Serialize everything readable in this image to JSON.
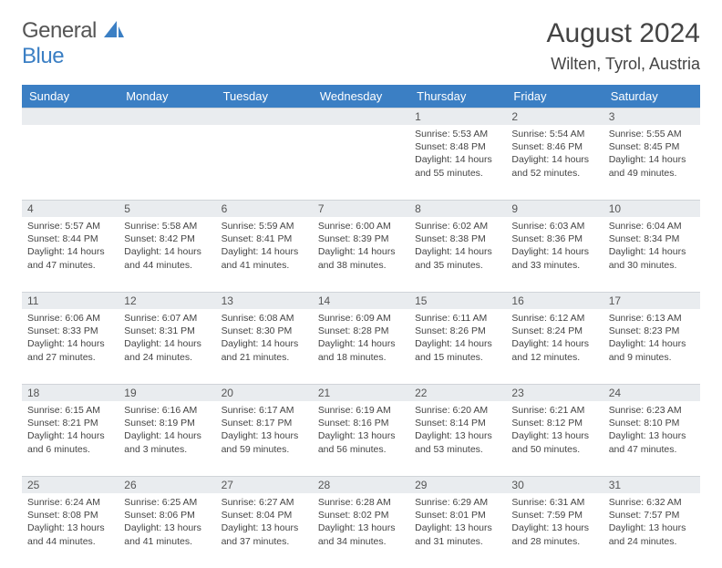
{
  "logo": {
    "text_a": "General",
    "text_b": "Blue"
  },
  "title": "August 2024",
  "location": "Wilten, Tyrol, Austria",
  "colors": {
    "header_bg": "#3b7fc4",
    "header_text": "#ffffff",
    "daynum_bg": "#e9ecef",
    "border": "#d0d4d9",
    "text": "#444444",
    "page_bg": "#ffffff"
  },
  "day_headers": [
    "Sunday",
    "Monday",
    "Tuesday",
    "Wednesday",
    "Thursday",
    "Friday",
    "Saturday"
  ],
  "weeks": [
    {
      "nums": [
        "",
        "",
        "",
        "",
        "1",
        "2",
        "3"
      ],
      "cells": [
        null,
        null,
        null,
        null,
        {
          "sunrise": "5:53 AM",
          "sunset": "8:48 PM",
          "daylight": "14 hours and 55 minutes."
        },
        {
          "sunrise": "5:54 AM",
          "sunset": "8:46 PM",
          "daylight": "14 hours and 52 minutes."
        },
        {
          "sunrise": "5:55 AM",
          "sunset": "8:45 PM",
          "daylight": "14 hours and 49 minutes."
        }
      ]
    },
    {
      "nums": [
        "4",
        "5",
        "6",
        "7",
        "8",
        "9",
        "10"
      ],
      "cells": [
        {
          "sunrise": "5:57 AM",
          "sunset": "8:44 PM",
          "daylight": "14 hours and 47 minutes."
        },
        {
          "sunrise": "5:58 AM",
          "sunset": "8:42 PM",
          "daylight": "14 hours and 44 minutes."
        },
        {
          "sunrise": "5:59 AM",
          "sunset": "8:41 PM",
          "daylight": "14 hours and 41 minutes."
        },
        {
          "sunrise": "6:00 AM",
          "sunset": "8:39 PM",
          "daylight": "14 hours and 38 minutes."
        },
        {
          "sunrise": "6:02 AM",
          "sunset": "8:38 PM",
          "daylight": "14 hours and 35 minutes."
        },
        {
          "sunrise": "6:03 AM",
          "sunset": "8:36 PM",
          "daylight": "14 hours and 33 minutes."
        },
        {
          "sunrise": "6:04 AM",
          "sunset": "8:34 PM",
          "daylight": "14 hours and 30 minutes."
        }
      ]
    },
    {
      "nums": [
        "11",
        "12",
        "13",
        "14",
        "15",
        "16",
        "17"
      ],
      "cells": [
        {
          "sunrise": "6:06 AM",
          "sunset": "8:33 PM",
          "daylight": "14 hours and 27 minutes."
        },
        {
          "sunrise": "6:07 AM",
          "sunset": "8:31 PM",
          "daylight": "14 hours and 24 minutes."
        },
        {
          "sunrise": "6:08 AM",
          "sunset": "8:30 PM",
          "daylight": "14 hours and 21 minutes."
        },
        {
          "sunrise": "6:09 AM",
          "sunset": "8:28 PM",
          "daylight": "14 hours and 18 minutes."
        },
        {
          "sunrise": "6:11 AM",
          "sunset": "8:26 PM",
          "daylight": "14 hours and 15 minutes."
        },
        {
          "sunrise": "6:12 AM",
          "sunset": "8:24 PM",
          "daylight": "14 hours and 12 minutes."
        },
        {
          "sunrise": "6:13 AM",
          "sunset": "8:23 PM",
          "daylight": "14 hours and 9 minutes."
        }
      ]
    },
    {
      "nums": [
        "18",
        "19",
        "20",
        "21",
        "22",
        "23",
        "24"
      ],
      "cells": [
        {
          "sunrise": "6:15 AM",
          "sunset": "8:21 PM",
          "daylight": "14 hours and 6 minutes."
        },
        {
          "sunrise": "6:16 AM",
          "sunset": "8:19 PM",
          "daylight": "14 hours and 3 minutes."
        },
        {
          "sunrise": "6:17 AM",
          "sunset": "8:17 PM",
          "daylight": "13 hours and 59 minutes."
        },
        {
          "sunrise": "6:19 AM",
          "sunset": "8:16 PM",
          "daylight": "13 hours and 56 minutes."
        },
        {
          "sunrise": "6:20 AM",
          "sunset": "8:14 PM",
          "daylight": "13 hours and 53 minutes."
        },
        {
          "sunrise": "6:21 AM",
          "sunset": "8:12 PM",
          "daylight": "13 hours and 50 minutes."
        },
        {
          "sunrise": "6:23 AM",
          "sunset": "8:10 PM",
          "daylight": "13 hours and 47 minutes."
        }
      ]
    },
    {
      "nums": [
        "25",
        "26",
        "27",
        "28",
        "29",
        "30",
        "31"
      ],
      "cells": [
        {
          "sunrise": "6:24 AM",
          "sunset": "8:08 PM",
          "daylight": "13 hours and 44 minutes."
        },
        {
          "sunrise": "6:25 AM",
          "sunset": "8:06 PM",
          "daylight": "13 hours and 41 minutes."
        },
        {
          "sunrise": "6:27 AM",
          "sunset": "8:04 PM",
          "daylight": "13 hours and 37 minutes."
        },
        {
          "sunrise": "6:28 AM",
          "sunset": "8:02 PM",
          "daylight": "13 hours and 34 minutes."
        },
        {
          "sunrise": "6:29 AM",
          "sunset": "8:01 PM",
          "daylight": "13 hours and 31 minutes."
        },
        {
          "sunrise": "6:31 AM",
          "sunset": "7:59 PM",
          "daylight": "13 hours and 28 minutes."
        },
        {
          "sunrise": "6:32 AM",
          "sunset": "7:57 PM",
          "daylight": "13 hours and 24 minutes."
        }
      ]
    }
  ],
  "labels": {
    "sunrise": "Sunrise: ",
    "sunset": "Sunset: ",
    "daylight": "Daylight: "
  }
}
